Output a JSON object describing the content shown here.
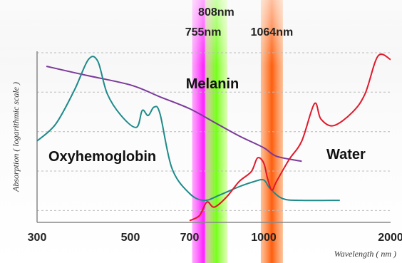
{
  "chart_data": {
    "type": "line",
    "xlabel": "Wavelength ( nm )",
    "ylabel": "Absorption ( logarithmic scale )",
    "x_ticks": [
      300,
      500,
      700,
      1000,
      2000
    ],
    "y_scale": "log",
    "grid": true,
    "laser_bands": [
      {
        "label": "755nm",
        "wavelength": 755,
        "color": "#ff33ff"
      },
      {
        "label": "808nm",
        "wavelength": 808,
        "color": "#88ff33"
      },
      {
        "label": "1064nm",
        "wavelength": 1064,
        "color": "#ff6a00"
      }
    ],
    "series": [
      {
        "name": "Melanin",
        "color": "#7a3a9a",
        "points": [
          [
            320,
            9.2
          ],
          [
            400,
            8.7
          ],
          [
            500,
            8.1
          ],
          [
            600,
            7.4
          ],
          [
            700,
            6.7
          ],
          [
            800,
            5.9
          ],
          [
            900,
            5.1
          ],
          [
            1000,
            4.4
          ],
          [
            1100,
            3.9
          ],
          [
            1300,
            3.6
          ]
        ]
      },
      {
        "name": "Oxyhemoglobin",
        "color": "#1f8a8a",
        "points": [
          [
            300,
            4.8
          ],
          [
            340,
            5.8
          ],
          [
            380,
            7.8
          ],
          [
            410,
            9.6
          ],
          [
            430,
            9.5
          ],
          [
            450,
            7.6
          ],
          [
            480,
            6.3
          ],
          [
            520,
            5.6
          ],
          [
            540,
            6.6
          ],
          [
            560,
            6.3
          ],
          [
            580,
            6.8
          ],
          [
            600,
            6.4
          ],
          [
            640,
            3.2
          ],
          [
            700,
            1.7
          ],
          [
            760,
            1.3
          ],
          [
            820,
            1.6
          ],
          [
            900,
            2.1
          ],
          [
            960,
            2.4
          ],
          [
            1000,
            2.5
          ],
          [
            1050,
            2.0
          ],
          [
            1150,
            1.4
          ],
          [
            1300,
            1.3
          ],
          [
            1600,
            1.3
          ]
        ]
      },
      {
        "name": "Water",
        "color": "#e0192b",
        "points": [
          [
            700,
            0.1
          ],
          [
            740,
            0.4
          ],
          [
            770,
            1.2
          ],
          [
            800,
            0.9
          ],
          [
            850,
            1.5
          ],
          [
            900,
            2.4
          ],
          [
            950,
            3.0
          ],
          [
            975,
            3.8
          ],
          [
            1000,
            3.5
          ],
          [
            1030,
            2.6
          ],
          [
            1064,
            1.9
          ],
          [
            1100,
            2.4
          ],
          [
            1200,
            3.7
          ],
          [
            1300,
            4.8
          ],
          [
            1400,
            7.0
          ],
          [
            1450,
            6.1
          ],
          [
            1550,
            5.7
          ],
          [
            1700,
            6.5
          ],
          [
            1800,
            7.6
          ],
          [
            1900,
            9.8
          ],
          [
            2000,
            9.6
          ]
        ]
      }
    ]
  }
}
